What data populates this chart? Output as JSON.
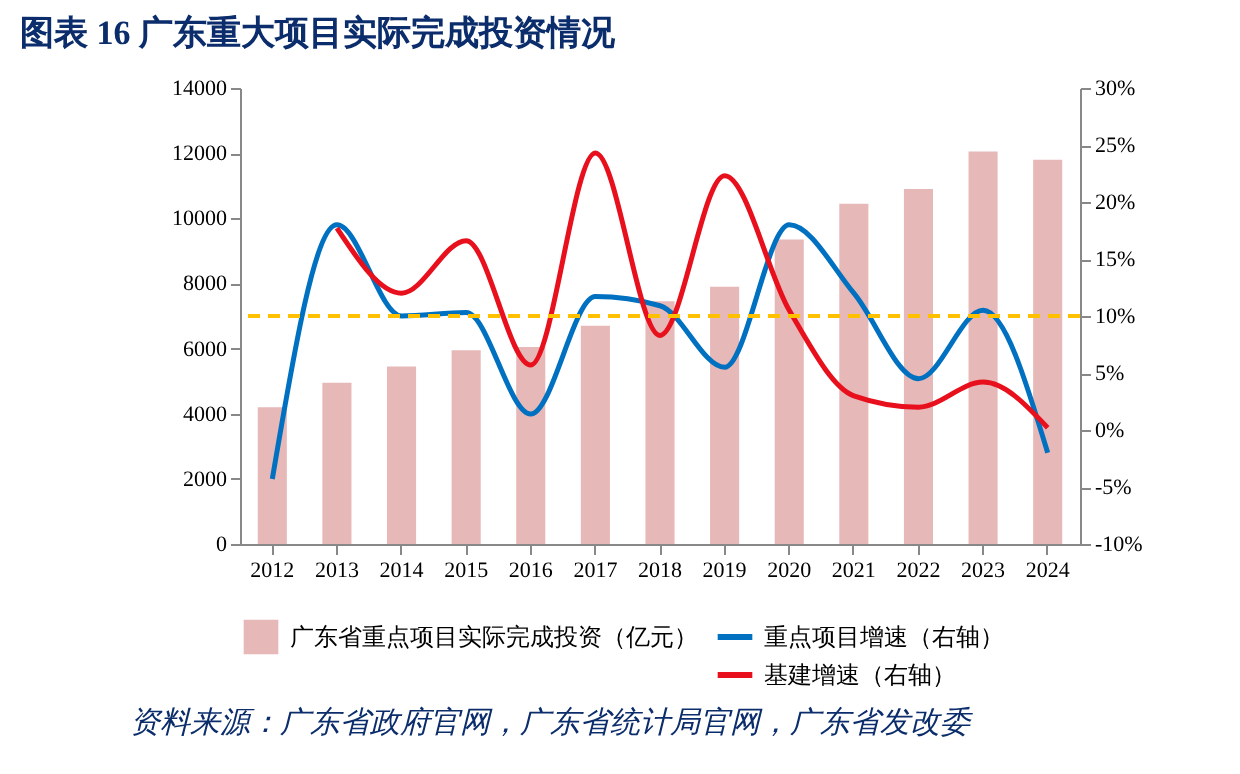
{
  "chart_data": {
    "type": "bar",
    "title": "图表 16   广东重大项目实际完成投资情况",
    "categories": [
      "2012",
      "2013",
      "2014",
      "2015",
      "2016",
      "2017",
      "2018",
      "2019",
      "2020",
      "2021",
      "2022",
      "2023",
      "2024"
    ],
    "series": [
      {
        "name": "广东省重点项目实际完成投资（亿元）",
        "color": "#e6b8b7",
        "values": [
          4200,
          4950,
          5450,
          5950,
          6050,
          6700,
          7450,
          7900,
          9350,
          10450,
          10900,
          12050,
          11800
        ]
      },
      {
        "name": "重点项目增速（右轴）",
        "type": "line",
        "axis": "y2",
        "color": "#0070c0",
        "values": [
          -4.3,
          18,
          10,
          10.3,
          1.4,
          11.7,
          10.9,
          5.5,
          18,
          12,
          4.5,
          10.5,
          -2
        ]
      },
      {
        "name": "基建增速（右轴）",
        "type": "line",
        "axis": "y2",
        "color": "#e8101c",
        "values": [
          null,
          17.7,
          12,
          16.6,
          5.7,
          24.3,
          8.3,
          22.3,
          10.5,
          3,
          2,
          4.2,
          0.2
        ]
      }
    ],
    "ylim": [
      0,
      14000
    ],
    "yticks": [
      0,
      2000,
      4000,
      6000,
      8000,
      10000,
      12000,
      14000
    ],
    "y2lim": [
      -10,
      30
    ],
    "y2ticks": [
      {
        "value": -10,
        "label": "-10%"
      },
      {
        "value": -5,
        "label": "-5%"
      },
      {
        "value": 0,
        "label": "0%"
      },
      {
        "value": 5,
        "label": "5%"
      },
      {
        "value": 10,
        "label": "10%"
      },
      {
        "value": 15,
        "label": "15%"
      },
      {
        "value": 20,
        "label": "20%"
      },
      {
        "value": 25,
        "label": "25%"
      },
      {
        "value": 30,
        "label": "30%"
      }
    ],
    "ref_lines": [
      {
        "axis": "y2",
        "value": 10,
        "color": "#ffc000",
        "line_style": "dashed"
      }
    ],
    "legend": "bottom",
    "grid": false,
    "annotations": [
      "资料来源：广东省政府官网，广东省统计局官网，广东省发改委"
    ]
  }
}
